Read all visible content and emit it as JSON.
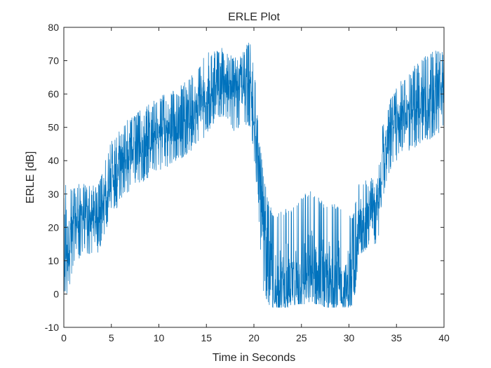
{
  "chart_data": {
    "type": "line",
    "title": "ERLE Plot",
    "xlabel": "Time in Seconds",
    "ylabel": "ERLE [dB]",
    "xlim": [
      0,
      40
    ],
    "ylim": [
      -10,
      80
    ],
    "xticks": [
      0,
      5,
      10,
      15,
      20,
      25,
      30,
      35,
      40
    ],
    "yticks": [
      -10,
      0,
      10,
      20,
      30,
      40,
      50,
      60,
      70,
      80
    ],
    "grid": false,
    "line_color": "#0072BD",
    "series": [
      {
        "x": [
          0,
          0.5,
          1,
          1.5,
          2,
          2.5,
          3,
          3.5,
          4,
          4.5,
          5,
          5.5,
          6,
          6.5,
          7,
          7.5,
          8,
          8.5,
          9,
          9.5,
          10,
          10.5,
          11,
          11.5,
          12,
          12.5,
          13,
          13.5,
          14,
          14.5,
          15,
          15.5,
          16,
          16.5,
          17,
          17.5,
          18,
          18.5,
          19,
          19.5,
          20,
          20.5,
          21,
          21.5,
          22,
          22.5,
          23,
          23.5,
          24,
          24.5,
          25,
          25.5,
          26,
          26.5,
          27,
          27.5,
          28,
          28.5,
          29,
          29.5,
          30,
          30.5,
          31,
          31.5,
          32,
          32.5,
          33,
          33.5,
          34,
          34.5,
          35,
          35.5,
          36,
          36.5,
          37,
          37.5,
          38,
          38.5,
          39,
          39.5,
          40
        ],
        "values": [
          14,
          15,
          19,
          22,
          24,
          23,
          22,
          22,
          24,
          33,
          35,
          37,
          39,
          41,
          42,
          43,
          44,
          45,
          46,
          47,
          48,
          49,
          50,
          50,
          51,
          52,
          53,
          54,
          55,
          57,
          60,
          62,
          64,
          65,
          64,
          62,
          61,
          62,
          62,
          63,
          55,
          38,
          15,
          6,
          3,
          2,
          2,
          3,
          3,
          4,
          5,
          5,
          6,
          6,
          5,
          4,
          3,
          3,
          3,
          3,
          2,
          2,
          20,
          22,
          24,
          25,
          24,
          38,
          45,
          50,
          52,
          53,
          54,
          55,
          56,
          57,
          58,
          58,
          59,
          60,
          60
        ],
        "band_min": [
          -1,
          0,
          8,
          10,
          12,
          12,
          12,
          12,
          14,
          20,
          24,
          25,
          28,
          30,
          31,
          32,
          33,
          34,
          35,
          36,
          37,
          38,
          38,
          39,
          40,
          41,
          42,
          43,
          44,
          45,
          48,
          50,
          52,
          53,
          52,
          50,
          48,
          50,
          50,
          50,
          42,
          22,
          0,
          -3,
          -4,
          -4,
          -4,
          -4,
          -4,
          -3,
          -3,
          -3,
          -2,
          -3,
          -3,
          -4,
          -4,
          -4,
          -4,
          -4,
          -4,
          -3,
          10,
          12,
          14,
          15,
          14,
          28,
          34,
          38,
          40,
          41,
          42,
          43,
          44,
          45,
          46,
          46,
          47,
          48,
          48
        ],
        "band_max": [
          34,
          33,
          32,
          33,
          34,
          33,
          33,
          32,
          36,
          44,
          46,
          48,
          50,
          52,
          53,
          54,
          55,
          56,
          57,
          58,
          59,
          60,
          60,
          61,
          62,
          63,
          65,
          66,
          67,
          70,
          72,
          73,
          74,
          74,
          73,
          72,
          71,
          72,
          73,
          77,
          69,
          50,
          36,
          28,
          25,
          24,
          25,
          26,
          26,
          28,
          30,
          31,
          31,
          30,
          29,
          27,
          27,
          27,
          27,
          26,
          25,
          24,
          33,
          34,
          35,
          35,
          34,
          50,
          56,
          60,
          62,
          64,
          65,
          67,
          69,
          71,
          72,
          72,
          73,
          73,
          73
        ]
      }
    ]
  }
}
